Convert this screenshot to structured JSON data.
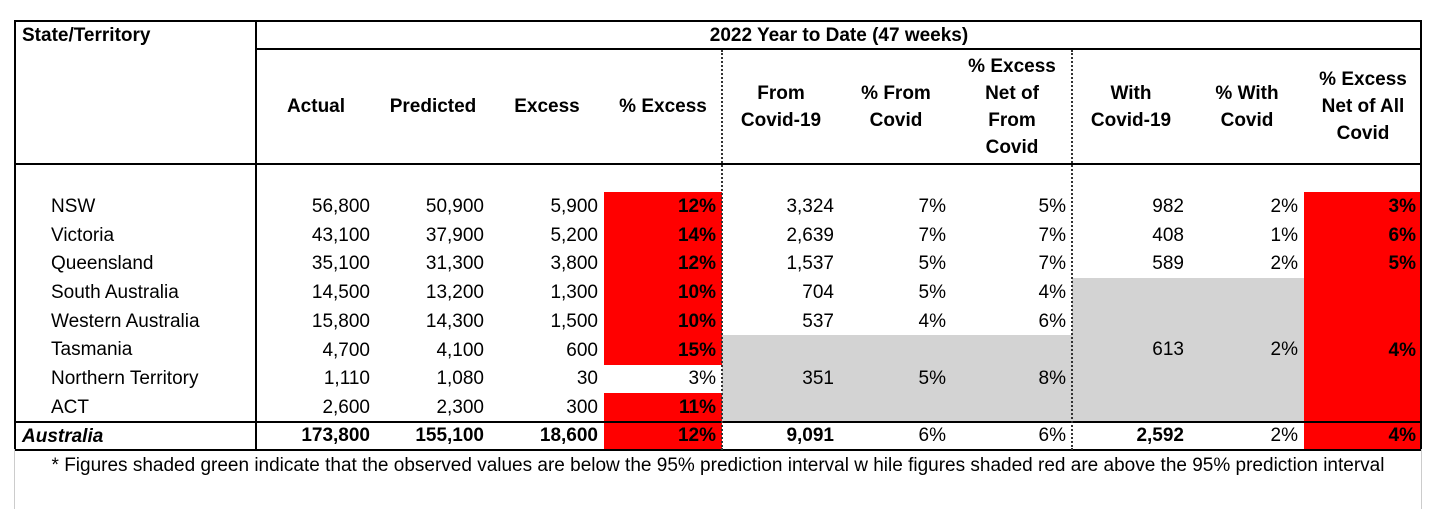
{
  "header": {
    "state_title": "State/Territory",
    "group_title": "2022 Year to Date (47 weeks)",
    "columns": [
      "Actual",
      "Predicted",
      "Excess",
      "% Excess",
      "From\nCovid-19",
      "% From\nCovid",
      "% Excess\nNet of\nFrom\nCovid",
      "With\nCovid-19",
      "% With\nCovid",
      "% Excess\nNet of All\nCovid"
    ]
  },
  "rows": [
    {
      "name": "NSW",
      "actual": "56,800",
      "predicted": "50,900",
      "excess": "5,900",
      "pct_excess": "12%",
      "from_covid": "3,324",
      "pct_from": "7%",
      "net_from": "5%",
      "with_covid": "982",
      "pct_with": "2%",
      "net_all": "3%"
    },
    {
      "name": "Victoria",
      "actual": "43,100",
      "predicted": "37,900",
      "excess": "5,200",
      "pct_excess": "14%",
      "from_covid": "2,639",
      "pct_from": "7%",
      "net_from": "7%",
      "with_covid": "408",
      "pct_with": "1%",
      "net_all": "6%"
    },
    {
      "name": "Queensland",
      "actual": "35,100",
      "predicted": "31,300",
      "excess": "3,800",
      "pct_excess": "12%",
      "from_covid": "1,537",
      "pct_from": "5%",
      "net_from": "7%",
      "with_covid": "589",
      "pct_with": "2%",
      "net_all": "5%"
    },
    {
      "name": "South Australia",
      "actual": "14,500",
      "predicted": "13,200",
      "excess": "1,300",
      "pct_excess": "10%",
      "from_covid": "704",
      "pct_from": "5%",
      "net_from": "4%"
    },
    {
      "name": "Western Australia",
      "actual": "15,800",
      "predicted": "14,300",
      "excess": "1,500",
      "pct_excess": "10%",
      "from_covid": "537",
      "pct_from": "4%",
      "net_from": "6%"
    },
    {
      "name": "Tasmania",
      "actual": "4,700",
      "predicted": "4,100",
      "excess": "600",
      "pct_excess": "15%"
    },
    {
      "name": "Northern Territory",
      "actual": "1,110",
      "predicted": "1,080",
      "excess": "30",
      "pct_excess": "3%"
    },
    {
      "name": "ACT",
      "actual": "2,600",
      "predicted": "2,300",
      "excess": "300",
      "pct_excess": "11%"
    }
  ],
  "merged": {
    "small_from_covid": "351",
    "small_pct_from": "5%",
    "small_net_from": "8%",
    "rest_with_covid": "613",
    "rest_pct_with": "2%",
    "rest_net_all": "4%"
  },
  "total": {
    "name": "Australia",
    "actual": "173,800",
    "predicted": "155,100",
    "excess": "18,600",
    "pct_excess": "12%",
    "from_covid": "9,091",
    "pct_from": "6%",
    "net_from": "6%",
    "with_covid": "2,592",
    "pct_with": "2%",
    "net_all": "4%"
  },
  "footnote": "* Figures shaded green indicate that the observed values are below  the 95% prediction interval w hile figures shaded red are above the 95% prediction interval",
  "colors": {
    "red_shade": "#ff0000",
    "grey_shade": "#d3d3d3"
  }
}
